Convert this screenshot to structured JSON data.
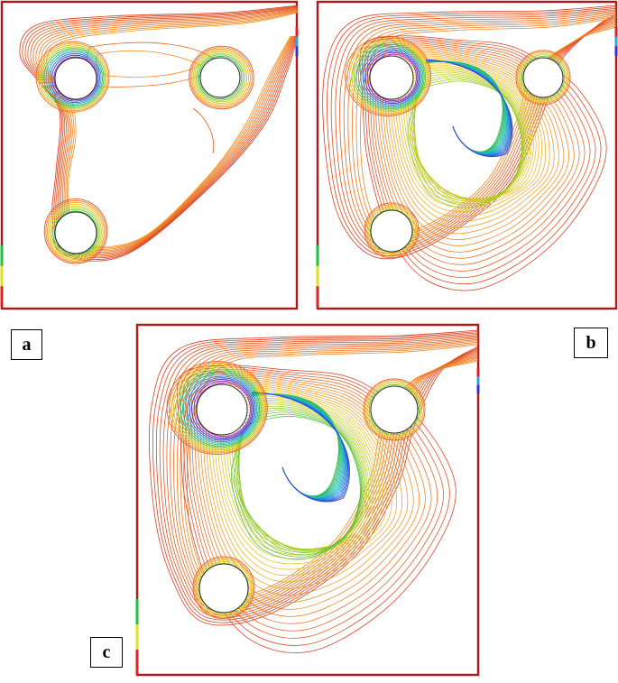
{
  "figure": {
    "panels": [
      {
        "label": "a",
        "wall_color": "#b01818",
        "cylinders": [
          "top-left",
          "top-right",
          "bottom-left"
        ],
        "pattern": "three-separated-vortices"
      },
      {
        "label": "b",
        "wall_color": "#b01818",
        "cylinders": [
          "top-left",
          "top-right",
          "bottom-left"
        ],
        "pattern": "single-large-vortex"
      },
      {
        "label": "c",
        "wall_color": "#b01818",
        "cylinders": [
          "top-left",
          "top-right",
          "bottom-left"
        ],
        "pattern": "single-large-vortex-strong"
      }
    ],
    "contour_palette": [
      "#d42a1a",
      "#f08020",
      "#f0c020",
      "#a8d020",
      "#30b840",
      "#20c0b0",
      "#2080e0",
      "#3030d0",
      "#a020c0",
      "#e020a0"
    ],
    "inlet_colors": [
      "#20c040",
      "#e0e020",
      "#e02020"
    ],
    "outlet_colors": [
      "#e02020",
      "#30a0e0",
      "#3030d0"
    ]
  }
}
